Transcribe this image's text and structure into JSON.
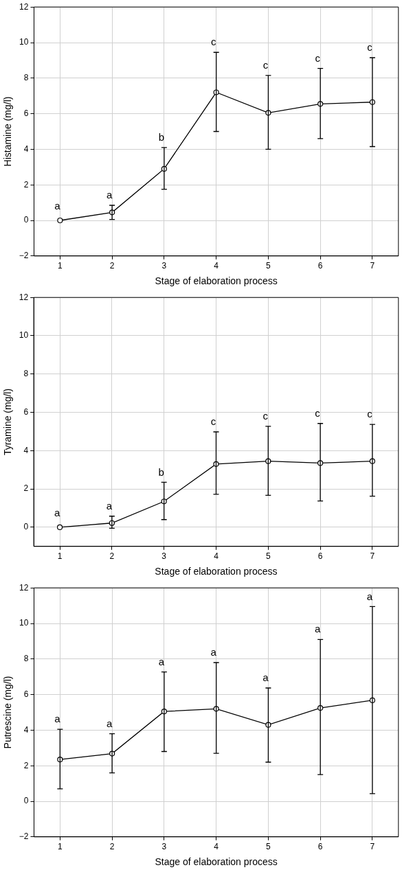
{
  "chart_data": [
    {
      "type": "line",
      "xlabel": "Stage of elaboration process",
      "ylabel": "Histamine (mg/l)",
      "categories": [
        "1",
        "2",
        "3",
        "4",
        "5",
        "6",
        "7"
      ],
      "color": "#000000",
      "marker": "circle",
      "grid": true,
      "ylim": [
        -2,
        12
      ],
      "yticks": [
        {
          "value": -2,
          "label": "−2"
        },
        0,
        2,
        4,
        6,
        8,
        10,
        12
      ],
      "values": [
        0,
        0.45,
        2.9,
        7.2,
        6.05,
        6.55,
        6.65
      ],
      "errors": [
        null,
        [
          0.05,
          0.85
        ],
        [
          1.75,
          4.1
        ],
        [
          5,
          9.45
        ],
        [
          4,
          8.15
        ],
        [
          4.6,
          8.55
        ],
        [
          4.15,
          9.15
        ]
      ],
      "annotations": [
        "a",
        "a",
        "b",
        "c",
        "c",
        "c",
        "c"
      ]
    },
    {
      "type": "line",
      "xlabel": "Stage of elaboration process",
      "ylabel": "Tyramine (mg/l)",
      "categories": [
        "1",
        "2",
        "3",
        "4",
        "5",
        "6",
        "7"
      ],
      "color": "#000000",
      "marker": "circle",
      "grid": true,
      "ylim": [
        -1,
        12
      ],
      "yticks": [
        0,
        2,
        4,
        6,
        8,
        10,
        12
      ],
      "values": [
        0,
        0.22,
        1.35,
        3.3,
        3.45,
        3.35,
        3.45
      ],
      "errors": [
        null,
        [
          -0.05,
          0.58
        ],
        [
          0.4,
          2.35
        ],
        [
          1.72,
          4.98
        ],
        [
          1.67,
          5.27
        ],
        [
          1.37,
          5.42
        ],
        [
          1.62,
          5.37
        ]
      ],
      "annotations": [
        "a",
        "a",
        "b",
        "c",
        "c",
        "c",
        "c"
      ]
    },
    {
      "type": "line",
      "xlabel": "Stage of elaboration process",
      "ylabel": "Putrescine (mg/l)",
      "categories": [
        "1",
        "2",
        "3",
        "4",
        "5",
        "6",
        "7"
      ],
      "color": "#000000",
      "marker": "circle",
      "grid": true,
      "ylim": [
        -2,
        12
      ],
      "yticks": [
        {
          "value": -2,
          "label": "−2"
        },
        0,
        2,
        4,
        6,
        8,
        10,
        12
      ],
      "values": [
        2.35,
        2.68,
        5.05,
        5.2,
        4.3,
        5.25,
        5.68
      ],
      "errors": [
        [
          0.7,
          4.05
        ],
        [
          1.6,
          3.8
        ],
        [
          2.8,
          7.27
        ],
        [
          2.7,
          7.8
        ],
        [
          2.2,
          6.37
        ],
        [
          1.5,
          9.1
        ],
        [
          0.43,
          10.95
        ]
      ],
      "annotations": [
        "a",
        "a",
        "a",
        "a",
        "a",
        "a",
        "a"
      ]
    }
  ]
}
